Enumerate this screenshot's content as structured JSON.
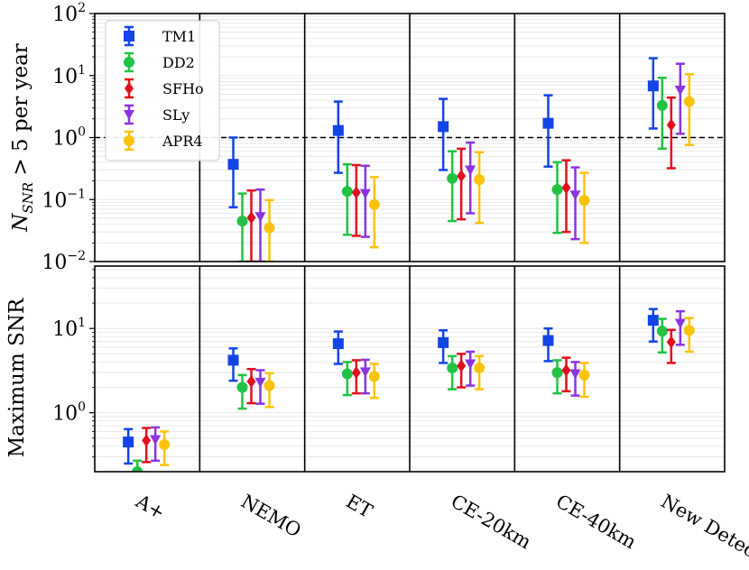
{
  "chart_data": [
    {
      "type": "scatter",
      "subtype": "errorbar",
      "ylabel": "N_{SNR} > 5 per year",
      "ylabel_parts": {
        "n": "N",
        "sub": "SNR",
        "rest": " > 5 per year"
      },
      "yscale": "log",
      "ylim": [
        0.01,
        100
      ],
      "yticks": [
        {
          "value": 0.01,
          "base": "10",
          "exp": "−2"
        },
        {
          "value": 0.1,
          "base": "10",
          "exp": "−1"
        },
        {
          "value": 1,
          "base": "10",
          "exp": "0"
        },
        {
          "value": 10,
          "base": "10",
          "exp": "1"
        },
        {
          "value": 100,
          "base": "10",
          "exp": "2"
        }
      ],
      "reference_line": {
        "y": 1,
        "style": "dashed"
      },
      "categories": [
        "A+",
        "NEMO",
        "ET",
        "CE-20km",
        "CE-40km",
        "New Detector"
      ],
      "series": [
        {
          "name": "TM1",
          "color": "#1244e6",
          "marker": "square",
          "values": [
            null,
            0.37,
            1.3,
            1.5,
            1.7,
            6.8
          ],
          "lower": [
            null,
            0.075,
            0.27,
            0.3,
            0.34,
            1.4
          ],
          "upper": [
            null,
            1.0,
            3.8,
            4.2,
            4.8,
            19
          ]
        },
        {
          "name": "DD2",
          "color": "#22c244",
          "marker": "circle",
          "values": [
            null,
            0.045,
            0.135,
            0.22,
            0.145,
            3.3
          ],
          "lower": [
            null,
            0.01,
            0.027,
            0.045,
            0.029,
            0.66
          ],
          "upper": [
            null,
            0.125,
            0.37,
            0.6,
            0.4,
            9.2
          ]
        },
        {
          "name": "SFHo",
          "color": "#e0101e",
          "marker": "diamond",
          "values": [
            null,
            0.051,
            0.13,
            0.24,
            0.155,
            1.6
          ],
          "lower": [
            null,
            0.01,
            0.026,
            0.048,
            0.03,
            0.32
          ],
          "upper": [
            null,
            0.14,
            0.36,
            0.66,
            0.43,
            4.4
          ]
        },
        {
          "name": "SLy",
          "color": "#8a35dd",
          "marker": "triangle-down",
          "values": [
            null,
            0.053,
            0.125,
            0.3,
            0.118,
            5.8
          ],
          "lower": [
            null,
            0.01,
            0.025,
            0.06,
            0.023,
            1.15
          ],
          "upper": [
            null,
            0.145,
            0.35,
            0.83,
            0.33,
            15.5
          ]
        },
        {
          "name": "APR4",
          "color": "#fbc30a",
          "marker": "circle",
          "values": [
            null,
            0.035,
            0.083,
            0.21,
            0.097,
            3.8
          ],
          "lower": [
            null,
            0.01,
            0.017,
            0.042,
            0.02,
            0.76
          ],
          "upper": [
            null,
            0.098,
            0.23,
            0.58,
            0.27,
            10.5
          ]
        }
      ],
      "legend": {
        "position": "top-left"
      }
    },
    {
      "type": "scatter",
      "subtype": "errorbar",
      "ylabel": "Maximum SNR",
      "yscale": "log",
      "ylim": [
        0.2,
        55
      ],
      "yticks": [
        {
          "value": 1,
          "base": "10",
          "exp": "0"
        },
        {
          "value": 10,
          "base": "10",
          "exp": "1"
        }
      ],
      "categories": [
        "A+",
        "NEMO",
        "ET",
        "CE-20km",
        "CE-40km",
        "New Detector"
      ],
      "series": [
        {
          "name": "TM1",
          "color": "#1244e6",
          "marker": "square",
          "values": [
            0.45,
            4.2,
            6.6,
            6.8,
            7.2,
            12.5
          ],
          "lower": [
            0.25,
            2.4,
            3.8,
            3.9,
            4.1,
            7.0
          ],
          "upper": [
            0.64,
            5.8,
            9.2,
            9.5,
            10.0,
            17.0
          ]
        },
        {
          "name": "DD2",
          "color": "#22c244",
          "marker": "circle",
          "values": [
            0.2,
            2.0,
            2.9,
            3.4,
            3.0,
            9.3
          ],
          "lower": [
            0.2,
            1.12,
            1.62,
            1.9,
            1.7,
            5.2
          ],
          "upper": [
            0.27,
            2.8,
            4.0,
            4.7,
            4.2,
            13.0
          ]
        },
        {
          "name": "SFHo",
          "color": "#e0101e",
          "marker": "diamond",
          "values": [
            0.47,
            2.35,
            3.0,
            3.6,
            3.2,
            6.9
          ],
          "lower": [
            0.26,
            1.3,
            1.7,
            2.0,
            1.8,
            3.9
          ],
          "upper": [
            0.66,
            3.3,
            4.2,
            5.0,
            4.5,
            9.6
          ]
        },
        {
          "name": "SLy",
          "color": "#8a35dd",
          "marker": "triangle-down",
          "values": [
            0.48,
            2.3,
            3.05,
            3.8,
            2.9,
            11.5
          ],
          "lower": [
            0.27,
            1.28,
            1.7,
            2.1,
            1.6,
            6.4
          ],
          "upper": [
            0.67,
            3.2,
            4.25,
            5.3,
            4.0,
            16.0
          ]
        },
        {
          "name": "APR4",
          "color": "#fbc30a",
          "marker": "circle",
          "values": [
            0.42,
            2.1,
            2.7,
            3.4,
            2.8,
            9.5
          ],
          "lower": [
            0.24,
            1.17,
            1.5,
            1.9,
            1.55,
            5.3
          ],
          "upper": [
            0.6,
            2.95,
            3.8,
            4.7,
            3.9,
            13.3
          ]
        }
      ]
    }
  ]
}
